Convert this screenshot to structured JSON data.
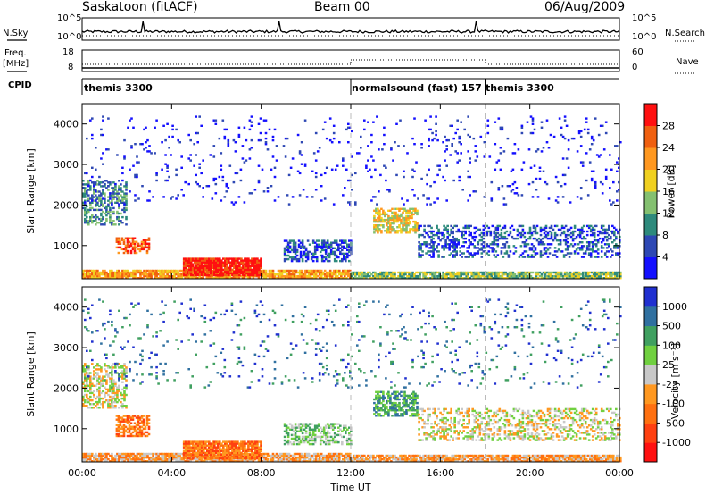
{
  "header": {
    "title": "Saskatoon (fitACF)",
    "beam": "Beam 00",
    "date": "06/Aug/2009"
  },
  "small_panels": {
    "nsky_label": "N.Sky",
    "nsky_ticks": [
      "10^5",
      "10^0"
    ],
    "nsearch_label": "N.Search",
    "nsearch_ticks": [
      "10^5",
      "10^0"
    ],
    "freq_label": "Freq.",
    "freq_unit": "[MHz]",
    "freq_ticks": [
      "18",
      "8"
    ],
    "nave_label": "Nave",
    "nave_ticks": [
      "60",
      "0"
    ],
    "cpid_label": "CPID",
    "modes": [
      {
        "name": "themis 3300",
        "start": 0
      },
      {
        "name": "normalsound (fast) 157",
        "start": 12
      },
      {
        "name": "themis 3300",
        "start": 18
      }
    ]
  },
  "chart_data": [
    {
      "type": "heatmap",
      "panel": "power",
      "xlabel": "Time UT",
      "ylabel": "Slant Range [km]",
      "xlim": [
        0,
        24
      ],
      "ylim": [
        180,
        4500
      ],
      "xticks": [
        "00:00",
        "04:00",
        "08:00",
        "12:00",
        "16:00",
        "20:00",
        "00:00"
      ],
      "yticks": [
        "1000",
        "2000",
        "3000",
        "4000"
      ],
      "ytick_values": [
        1000,
        2000,
        3000,
        4000
      ],
      "colorbar": {
        "title": "Power [dB]",
        "ticks": [
          "4",
          "8",
          "12",
          "16",
          "20",
          "24",
          "28"
        ],
        "colors": [
          "#1410ff",
          "#2e48b4",
          "#2e8a7c",
          "#84c070",
          "#f0d020",
          "#ff9820",
          "#f06010",
          "#ff1010"
        ]
      },
      "scatter_regions": [
        {
          "t": [
            0,
            12
          ],
          "range": [
            180,
            400
          ],
          "value_level": 5,
          "density": 0.85
        },
        {
          "t": [
            4.5,
            8
          ],
          "range": [
            250,
            700
          ],
          "value_level": 7,
          "density": 0.9
        },
        {
          "t": [
            1.5,
            3
          ],
          "range": [
            800,
            1200
          ],
          "value_level": 6,
          "density": 0.6
        },
        {
          "t": [
            0,
            2
          ],
          "range": [
            1500,
            2600
          ],
          "value_level": 2,
          "density": 0.45
        },
        {
          "t": [
            9,
            12
          ],
          "range": [
            600,
            1100
          ],
          "value_level": 1,
          "density": 0.5
        },
        {
          "t": [
            13,
            15
          ],
          "range": [
            1300,
            1900
          ],
          "value_level": 4,
          "density": 0.6
        },
        {
          "t": [
            12,
            24
          ],
          "range": [
            180,
            350
          ],
          "value_level": 3,
          "density": 0.85
        },
        {
          "t": [
            15,
            24
          ],
          "range": [
            700,
            1500
          ],
          "value_level": 1,
          "density": 0.35
        },
        {
          "t": [
            0,
            24
          ],
          "range": [
            2000,
            4200
          ],
          "value_level": 0,
          "density": 0.04
        }
      ]
    },
    {
      "type": "heatmap",
      "panel": "velocity",
      "xlabel": "Time UT",
      "ylabel": "Slant Range [km]",
      "xlim": [
        0,
        24
      ],
      "ylim": [
        180,
        4500
      ],
      "xticks": [
        "00:00",
        "04:00",
        "08:00",
        "12:00",
        "16:00",
        "20:00",
        "00:00"
      ],
      "yticks": [
        "1000",
        "2000",
        "3000",
        "4000"
      ],
      "ytick_values": [
        1000,
        2000,
        3000,
        4000
      ],
      "colorbar": {
        "title": "Velocity [m s⁻¹]",
        "ticks": [
          "1000",
          "500",
          "100",
          "25",
          "-25",
          "-100",
          "-500",
          "-1000"
        ],
        "colors": [
          "#2030d0",
          "#3070a0",
          "#40a060",
          "#70d040",
          "#c8c8c8",
          "#ff9820",
          "#ff7010",
          "#ff4010",
          "#ff1010"
        ]
      },
      "scatter_regions": [
        {
          "t": [
            0,
            12
          ],
          "range": [
            180,
            400
          ],
          "value_level": 5,
          "density": 0.85
        },
        {
          "t": [
            4.5,
            8
          ],
          "range": [
            250,
            700
          ],
          "value_level": 6,
          "density": 0.9
        },
        {
          "t": [
            1.5,
            3
          ],
          "range": [
            800,
            1300
          ],
          "value_level": 6,
          "density": 0.6
        },
        {
          "t": [
            0,
            2
          ],
          "range": [
            1500,
            2600
          ],
          "value_level": 4,
          "density": 0.45
        },
        {
          "t": [
            9,
            12
          ],
          "range": [
            600,
            1100
          ],
          "value_level": 3,
          "density": 0.5
        },
        {
          "t": [
            13,
            15
          ],
          "range": [
            1300,
            1900
          ],
          "value_level": 2,
          "density": 0.6
        },
        {
          "t": [
            12,
            24
          ],
          "range": [
            180,
            350
          ],
          "value_level": 5,
          "density": 0.85
        },
        {
          "t": [
            15,
            24
          ],
          "range": [
            700,
            1500
          ],
          "value_level": 4,
          "density": 0.35
        },
        {
          "t": [
            0,
            24
          ],
          "range": [
            2000,
            4200
          ],
          "value_level": 1,
          "density": 0.04
        }
      ]
    }
  ]
}
